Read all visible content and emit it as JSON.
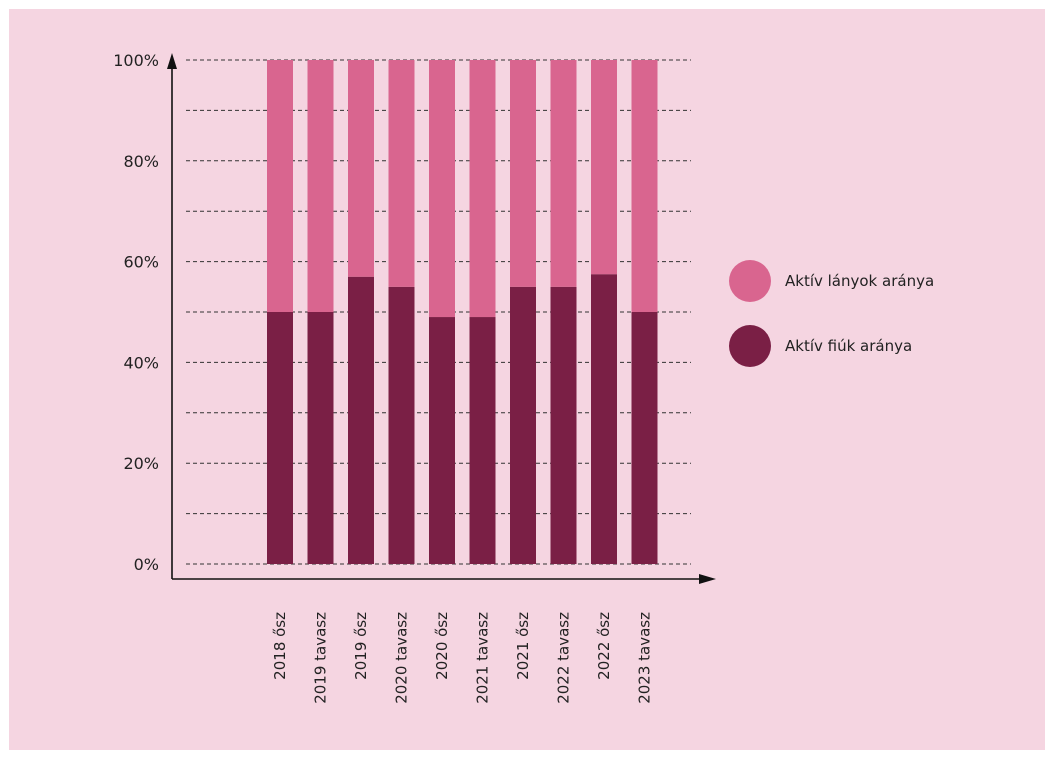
{
  "chart_data": {
    "type": "bar",
    "stacked": true,
    "categories": [
      "2018 ősz",
      "2019 tavasz",
      "2019 ősz",
      "2020 tavasz",
      "2020 ősz",
      "2021 tavasz",
      "2021 ősz",
      "2022 tavasz",
      "2022 ősz",
      "2023 tavasz"
    ],
    "series": [
      {
        "name": "Aktív fiúk aránya",
        "color": "#7a1f45",
        "values": [
          50,
          50,
          57,
          55,
          49,
          49,
          55,
          55,
          57.5,
          50
        ]
      },
      {
        "name": "Aktív lányok aránya",
        "color": "#d9658f",
        "values": [
          50,
          50,
          43,
          45,
          51,
          51,
          45,
          45,
          42.5,
          50
        ]
      }
    ],
    "title": "",
    "xlabel": "",
    "ylabel": "",
    "ylim": [
      0,
      100
    ],
    "yticks": [
      "0%",
      "20%",
      "40%",
      "60%",
      "80%",
      "100%"
    ],
    "grid": true,
    "legend_position": "right"
  },
  "legend": [
    {
      "label": "Aktív lányok aránya",
      "color": "#d9658f"
    },
    {
      "label": "Aktív fiúk aránya",
      "color": "#7a1f45"
    }
  ]
}
